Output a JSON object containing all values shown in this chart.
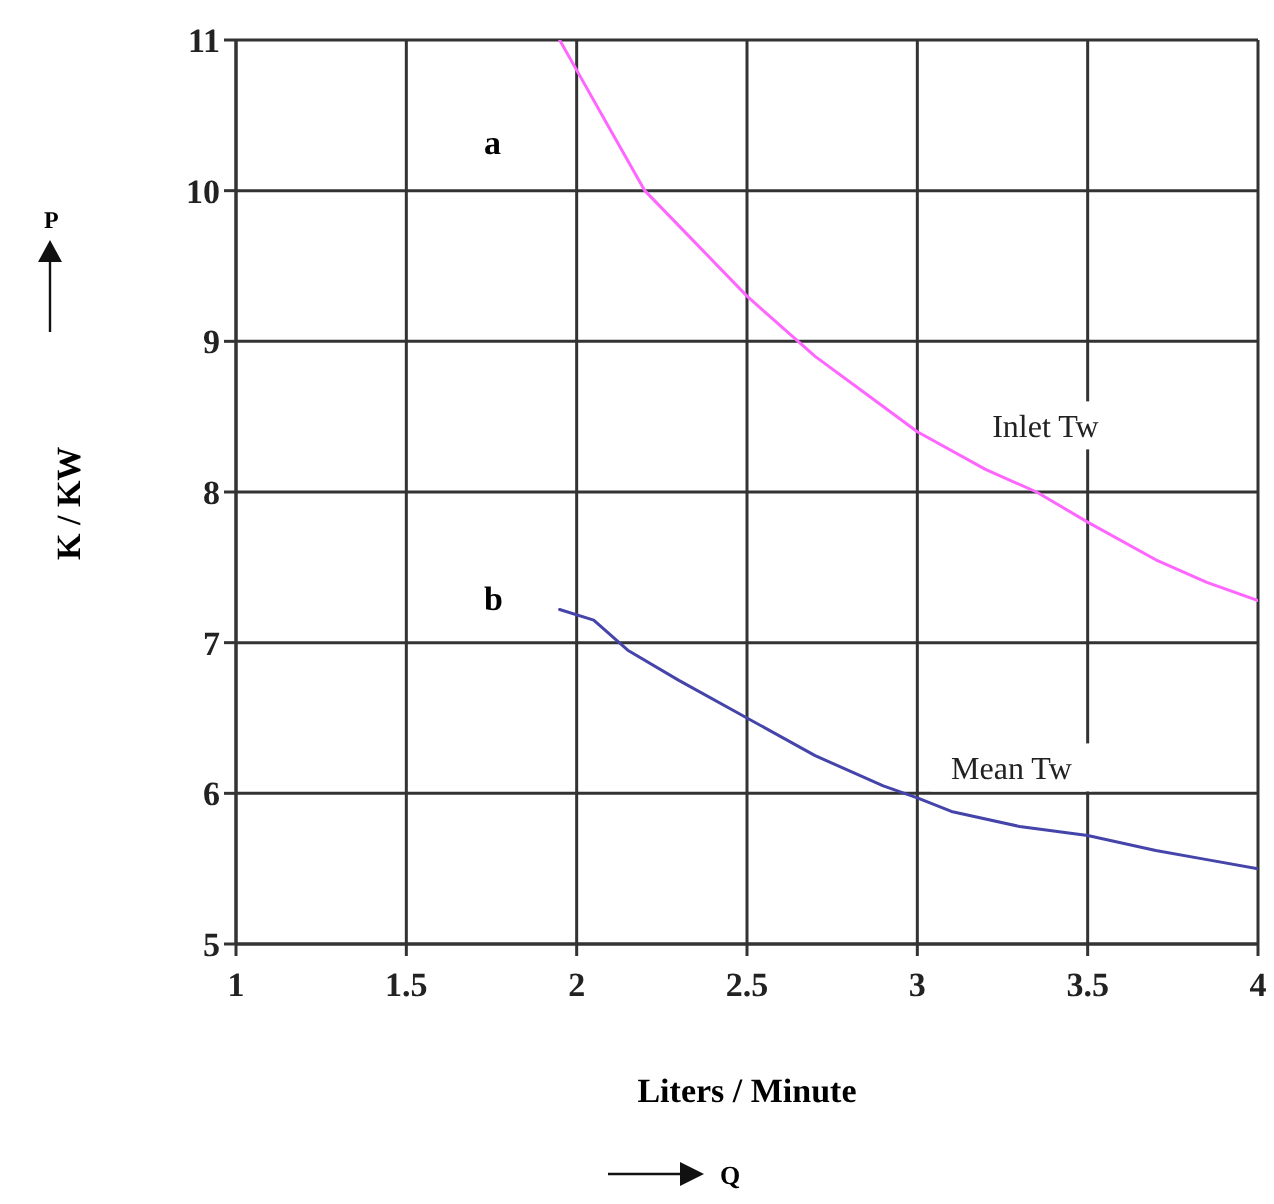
{
  "chart_data": {
    "type": "line",
    "xlabel": "Liters / Minute",
    "ylabel": "K / KW",
    "xlim": [
      1,
      4
    ],
    "xticks": [
      1,
      1.5,
      2,
      2.5,
      3,
      3.5,
      4
    ],
    "ylim": [
      5,
      11
    ],
    "yticks": [
      5,
      6,
      7,
      8,
      9,
      10,
      11
    ],
    "grid": true,
    "marker": "none",
    "line_style": "solid",
    "series": [
      {
        "name": "Inlet Tw",
        "color": "#ff66ff",
        "x": [
          1.95,
          2,
          2.1,
          2.2,
          2.35,
          2.5,
          2.7,
          2.85,
          3,
          3.2,
          3.35,
          3.5,
          3.7,
          3.85,
          4
        ],
        "values": [
          11,
          10.8,
          10.4,
          10.0,
          9.65,
          9.3,
          8.9,
          8.65,
          8.4,
          8.15,
          8.0,
          7.8,
          7.55,
          7.4,
          7.28
        ]
      },
      {
        "name": "Mean Tw",
        "color": "#4444aa",
        "x": [
          1.95,
          2.05,
          2.15,
          2.3,
          2.5,
          2.7,
          2.9,
          3,
          3.1,
          3.3,
          3.5,
          3.7,
          3.85,
          4
        ],
        "values": [
          7.22,
          7.15,
          6.95,
          6.75,
          6.5,
          6.25,
          6.05,
          5.97,
          5.88,
          5.78,
          5.72,
          5.62,
          5.56,
          5.5
        ]
      }
    ],
    "annotations": [
      "a",
      "b",
      "P",
      "Q"
    ]
  }
}
